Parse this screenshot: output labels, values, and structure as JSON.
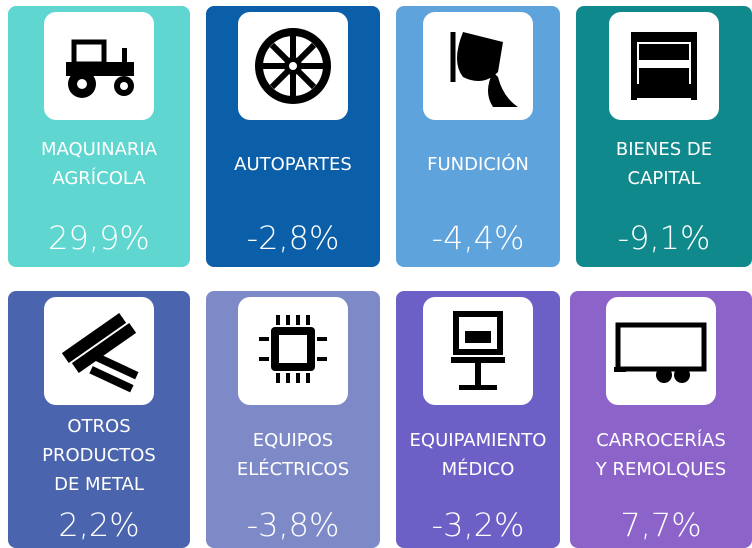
{
  "tiles": [
    {
      "label": [
        "MAQUINARIA",
        "AGRÍCOLA"
      ],
      "value": "29,9%"
    },
    {
      "label": [
        "AUTOPARTES"
      ],
      "value": "-2,8%"
    },
    {
      "label": [
        "FUNDICIÓN"
      ],
      "value": "-4,4%"
    },
    {
      "label": [
        "BIENES DE",
        "CAPITAL"
      ],
      "value": "-9,1%"
    },
    {
      "label": [
        "OTROS",
        "PRODUCTOS",
        "DE METAL"
      ],
      "value": "2,2%"
    },
    {
      "label": [
        "EQUIPOS",
        "ELÉCTRICOS"
      ],
      "value": "-3,8%"
    },
    {
      "label": [
        "EQUIPAMIENTO",
        "MÉDICO"
      ],
      "value": "-3,2%"
    },
    {
      "label": [
        "CARROCERÍAS",
        "Y REMOLQUES"
      ],
      "value": "7,7%"
    }
  ]
}
